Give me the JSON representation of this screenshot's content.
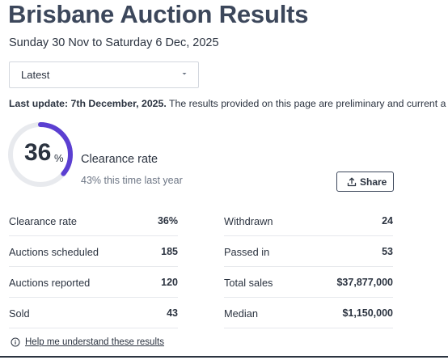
{
  "header": {
    "title": "Brisbane Auction Results",
    "date_range": "Sunday 30 Nov to Saturday 6 Dec, 2025"
  },
  "period_select": {
    "selected": "Latest"
  },
  "last_update": {
    "label": "Last update: 7th December, 2025.",
    "text": " The results provided on this page are preliminary and current a"
  },
  "clearance": {
    "value": "36",
    "unit": "%",
    "fraction": 0.36,
    "label": "Clearance rate",
    "comparison": "43% this time last year",
    "accent_color": "#5b3fd1",
    "track_color": "#e8eaee"
  },
  "share": {
    "label": "Share",
    "icon": "share-up-icon"
  },
  "stats_left": [
    {
      "label": "Clearance rate",
      "value": "36%"
    },
    {
      "label": "Auctions scheduled",
      "value": "185"
    },
    {
      "label": "Auctions reported",
      "value": "120"
    },
    {
      "label": "Sold",
      "value": "43"
    }
  ],
  "stats_right": [
    {
      "label": "Withdrawn",
      "value": "24"
    },
    {
      "label": "Passed in",
      "value": "53"
    },
    {
      "label": "Total sales",
      "value": "$37,877,000"
    },
    {
      "label": "Median",
      "value": "$1,150,000"
    }
  ],
  "help": {
    "label": "Help me understand these results",
    "icon": "info-icon"
  }
}
